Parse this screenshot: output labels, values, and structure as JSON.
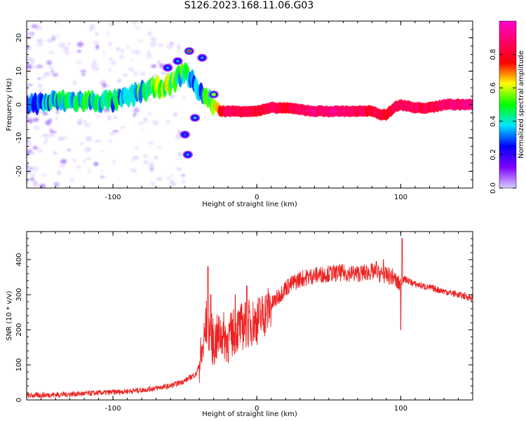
{
  "title": "S126.2023.168.11.06.G03",
  "colorbar": {
    "label": "Normalized spectral amplitude",
    "ticks": [
      "0.0",
      "0.2",
      "0.4",
      "0.6",
      "0.8"
    ],
    "tick_values": [
      0.0,
      0.2,
      0.4,
      0.6,
      0.8
    ],
    "range": [
      0,
      1
    ],
    "colors": [
      "#d9ccff",
      "#8000ff",
      "#0000ff",
      "#00e5ff",
      "#00ff00",
      "#ffff00",
      "#ff0000",
      "#ff0066",
      "#ff00cc"
    ]
  },
  "chart_data": [
    {
      "type": "heatmap",
      "xlabel": "Height of straight line (km)",
      "ylabel": "Frequency (Hz)",
      "xlim": [
        -160,
        150
      ],
      "ylim": [
        -25,
        25
      ],
      "xticks": [
        -100,
        0,
        100
      ],
      "xtick_labels": [
        "-100",
        "0",
        "100"
      ],
      "yticks": [
        -20,
        -10,
        0,
        10,
        20
      ],
      "ytick_labels": [
        "-20",
        "-10",
        "0",
        "10",
        "20"
      ],
      "ridge": {
        "x": [
          -160,
          -140,
          -120,
          -100,
          -90,
          -80,
          -70,
          -60,
          -55,
          -50,
          -45,
          -40,
          -35,
          -30,
          -25,
          -20,
          -10,
          0,
          10,
          20,
          40,
          60,
          70,
          80,
          85,
          90,
          95,
          100,
          110,
          120,
          130,
          150
        ],
        "y": [
          0,
          1,
          1,
          1,
          2,
          4,
          5,
          6,
          8,
          10,
          7,
          4,
          2,
          0,
          -2,
          -2,
          -2,
          -2,
          -1,
          -1,
          -2,
          -2,
          -2,
          -2,
          -3,
          -3,
          -1,
          0,
          -1,
          -1,
          0,
          0
        ],
        "amplitude": [
          0.3,
          0.45,
          0.5,
          0.45,
          0.45,
          0.55,
          0.6,
          0.6,
          0.5,
          0.55,
          0.45,
          0.4,
          0.55,
          0.55,
          0.85,
          0.9,
          0.9,
          0.85,
          0.9,
          0.85,
          0.95,
          0.95,
          0.9,
          0.85,
          0.9,
          0.85,
          0.9,
          0.95,
          0.9,
          0.9,
          0.95,
          0.95
        ]
      },
      "features": [
        {
          "x": -47,
          "y": 16,
          "amplitude": 0.8
        },
        {
          "x": -55,
          "y": 13,
          "amplitude": 0.35
        },
        {
          "x": -62,
          "y": 11,
          "amplitude": 0.35
        },
        {
          "x": -38,
          "y": 14,
          "amplitude": 0.35
        },
        {
          "x": -43,
          "y": -4,
          "amplitude": 0.4
        },
        {
          "x": -50,
          "y": -9,
          "amplitude": 0.3
        },
        {
          "x": -48,
          "y": -15,
          "amplitude": 0.35
        },
        {
          "x": -30,
          "y": 3,
          "amplitude": 0.6
        }
      ]
    },
    {
      "type": "line",
      "xlabel": "Height of straight line (km)",
      "ylabel": "SNR (10 * v/v)",
      "xlim": [
        -160,
        150
      ],
      "ylim": [
        0,
        480
      ],
      "xticks": [
        -100,
        0,
        100
      ],
      "xtick_labels": [
        "-100",
        "0",
        "100"
      ],
      "yticks": [
        0,
        100,
        200,
        300,
        400
      ],
      "ytick_labels": [
        "0",
        "100",
        "200",
        "300",
        "400"
      ],
      "color": "#ee2222",
      "x": [
        -160,
        -140,
        -120,
        -100,
        -80,
        -60,
        -50,
        -42,
        -38,
        -35,
        -33,
        -30,
        -25,
        -20,
        -15,
        -10,
        -5,
        0,
        5,
        10,
        20,
        30,
        40,
        50,
        60,
        70,
        80,
        90,
        95,
        98,
        100,
        102,
        105,
        110,
        120,
        130,
        140,
        150
      ],
      "y": [
        12,
        15,
        18,
        22,
        28,
        40,
        55,
        75,
        130,
        220,
        200,
        160,
        190,
        170,
        200,
        210,
        220,
        225,
        245,
        270,
        320,
        345,
        355,
        360,
        362,
        360,
        365,
        355,
        350,
        330,
        330,
        345,
        340,
        330,
        320,
        310,
        300,
        290
      ],
      "spikes": [
        {
          "x": -34,
          "y": 380
        },
        {
          "x": -32,
          "y": 300
        },
        {
          "x": -15,
          "y": 300
        },
        {
          "x": -7,
          "y": 325
        },
        {
          "x": 8,
          "y": 300
        },
        {
          "x": 83,
          "y": 395
        },
        {
          "x": 88,
          "y": 400
        },
        {
          "x": 100,
          "y": 475
        },
        {
          "x": 101,
          "y": 460
        }
      ],
      "dips": [
        {
          "x": 100,
          "y": 200
        }
      ],
      "noise": [
        {
          "x_from": -160,
          "x_to": -40,
          "amplitude": 8
        },
        {
          "x_from": -40,
          "x_to": 10,
          "amplitude": 70
        },
        {
          "x_from": 10,
          "x_to": 100,
          "amplitude": 25
        },
        {
          "x_from": 100,
          "x_to": 150,
          "amplitude": 10
        }
      ]
    }
  ]
}
